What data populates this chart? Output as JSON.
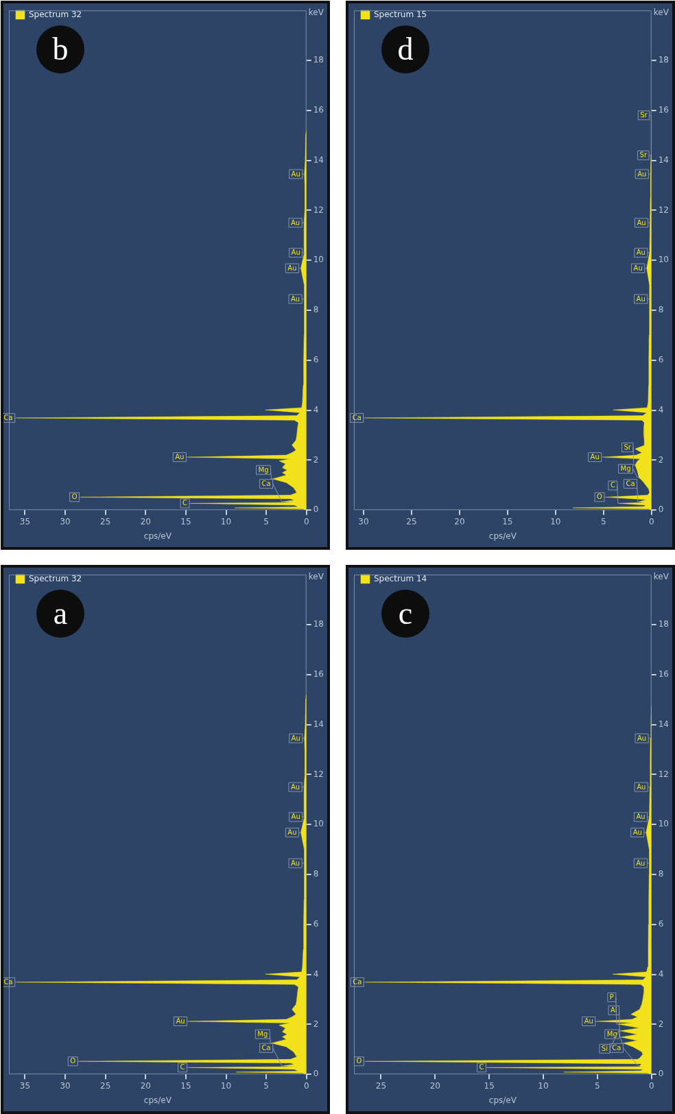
{
  "chart_data": [
    {
      "type": "area",
      "orientation": "horizontal",
      "title": "b",
      "xlabel": "cps/eV",
      "ylabel": "keV",
      "x": [
        0,
        0.05,
        0.09,
        0.13,
        0.2,
        0.27,
        0.31,
        0.34,
        0.4,
        0.45,
        0.52,
        0.6,
        0.7,
        0.9,
        1.1,
        1.25,
        1.4,
        1.5,
        1.6,
        1.7,
        1.85,
        1.97,
        2.05,
        2.12,
        2.2,
        2.3,
        2.4,
        2.6,
        2.8,
        3.0,
        3.3,
        3.5,
        3.6,
        3.69,
        3.78,
        3.9,
        4.01,
        4.1,
        4.3,
        5,
        6,
        7,
        8,
        8.45,
        9,
        9.68,
        10.3,
        11.5,
        12,
        13,
        13.45,
        14,
        15,
        15.2
      ],
      "series": [
        {
          "name": "Spectrum 32",
          "color": "#f2e21c",
          "values": [
            0,
            0.5,
            8.9,
            1,
            1.5,
            14.3,
            1.5,
            2.9,
            1.5,
            2,
            28,
            2,
            1.2,
            1.6,
            2.5,
            4.2,
            2.5,
            3,
            2.4,
            3,
            2.6,
            3.4,
            2,
            14.7,
            2.5,
            1.8,
            1.3,
            1.8,
            1.3,
            1.2,
            1.1,
            1,
            1.5,
            36,
            1.2,
            0.8,
            5.1,
            0.6,
            0.5,
            0.4,
            0.35,
            0.3,
            0.25,
            0.3,
            0.25,
            0.7,
            0.25,
            0.3,
            0.2,
            0.2,
            0.25,
            0.15,
            0.1,
            0
          ]
        }
      ],
      "xlim": [
        37,
        0
      ],
      "ylim": [
        0,
        20
      ],
      "xticks": [
        0,
        5,
        10,
        15,
        20,
        25,
        30,
        35
      ],
      "yticks": [
        0,
        2,
        4,
        6,
        8,
        10,
        12,
        14,
        16,
        18
      ],
      "legend": "top left",
      "marker": "none",
      "annotations": [
        {
          "text": "Ca",
          "x": 2.9,
          "y": 0.34
        },
        {
          "text": "C",
          "x": 14.3,
          "y": 0.27
        },
        {
          "text": "O",
          "x": 28,
          "y": 0.52
        },
        {
          "text": "Mg",
          "x": 4.2,
          "y": 1.25
        },
        {
          "text": "Au",
          "x": 14.7,
          "y": 2.12
        },
        {
          "text": "Ca",
          "x": 36,
          "y": 3.69
        },
        {
          "text": "Au",
          "x": 0.3,
          "y": 8.45
        },
        {
          "text": "Au",
          "x": 0.7,
          "y": 9.68
        },
        {
          "text": "Au",
          "x": 0.25,
          "y": 10.3
        },
        {
          "text": "Au",
          "x": 0.3,
          "y": 11.5
        },
        {
          "text": "Au",
          "x": 0.25,
          "y": 13.45
        }
      ]
    },
    {
      "type": "area",
      "orientation": "horizontal",
      "title": "d",
      "xlabel": "cps/eV",
      "ylabel": "keV",
      "x": [
        0,
        0.05,
        0.09,
        0.14,
        0.2,
        0.27,
        0.31,
        0.34,
        0.42,
        0.52,
        0.6,
        0.7,
        0.85,
        1.0,
        1.15,
        1.3,
        1.45,
        1.6,
        1.8,
        1.95,
        2.05,
        2.12,
        2.2,
        2.3,
        2.45,
        2.6,
        2.8,
        3.0,
        3.3,
        3.5,
        3.6,
        3.69,
        3.78,
        3.9,
        4.01,
        4.1,
        4.3,
        5,
        6,
        7,
        8,
        8.45,
        9,
        9.68,
        10.3,
        11.5,
        12.5,
        13.45,
        14.2,
        15.8
      ],
      "series": [
        {
          "name": "Spectrum 15",
          "color": "#f2e21c",
          "values": [
            0,
            0.3,
            8.2,
            0.8,
            0.6,
            3.35,
            0.7,
            1.3,
            0.5,
            4.7,
            0.4,
            0.2,
            0.3,
            0.6,
            0.9,
            1.3,
            1.4,
            1.5,
            1.7,
            1.5,
            1.2,
            5,
            1.6,
            1.0,
            1.7,
            0.7,
            0.75,
            0.8,
            0.8,
            0.75,
            1.0,
            29.8,
            0.9,
            0.5,
            4.0,
            0.45,
            0.35,
            0.3,
            0.28,
            0.25,
            0.22,
            0.21,
            0.2,
            0.5,
            0.2,
            0.15,
            0.12,
            0.1,
            0.05,
            0
          ]
        }
      ],
      "xlim": [
        31,
        0
      ],
      "ylim": [
        0,
        20
      ],
      "xticks": [
        0,
        5,
        10,
        15,
        20,
        25,
        30
      ],
      "yticks": [
        0,
        2,
        4,
        6,
        8,
        10,
        12,
        14,
        16,
        18
      ],
      "legend": "top left",
      "marker": "none",
      "annotations": [
        {
          "text": "Ca",
          "x": 1.3,
          "y": 0.34
        },
        {
          "text": "C",
          "x": 3.35,
          "y": 0.27
        },
        {
          "text": "O",
          "x": 4.7,
          "y": 0.52
        },
        {
          "text": "Mg",
          "x": 1.3,
          "y": 1.3
        },
        {
          "text": "Sr",
          "x": 1.7,
          "y": 1.8
        },
        {
          "text": "Au",
          "x": 5,
          "y": 2.12
        },
        {
          "text": "Ca",
          "x": 29.8,
          "y": 3.69
        },
        {
          "text": "Au",
          "x": 0.21,
          "y": 8.45
        },
        {
          "text": "Au",
          "x": 0.5,
          "y": 9.68
        },
        {
          "text": "Au",
          "x": 0.2,
          "y": 10.3
        },
        {
          "text": "Au",
          "x": 0.15,
          "y": 11.5
        },
        {
          "text": "Au",
          "x": 0.1,
          "y": 13.45
        },
        {
          "text": "Sr",
          "x": 0.05,
          "y": 14.2
        },
        {
          "text": "Sr",
          "x": 0,
          "y": 15.8
        }
      ]
    },
    {
      "type": "area",
      "orientation": "horizontal",
      "title": "a",
      "xlabel": "cps/eV",
      "ylabel": "keV",
      "x": [
        0,
        0.05,
        0.09,
        0.13,
        0.2,
        0.27,
        0.31,
        0.34,
        0.4,
        0.45,
        0.52,
        0.6,
        0.7,
        0.9,
        1.1,
        1.25,
        1.4,
        1.5,
        1.6,
        1.7,
        1.85,
        1.97,
        2.05,
        2.12,
        2.2,
        2.3,
        2.4,
        2.6,
        2.8,
        3.0,
        3.3,
        3.5,
        3.6,
        3.69,
        3.78,
        3.9,
        4.01,
        4.1,
        4.3,
        5,
        6,
        7,
        8,
        8.45,
        9,
        9.68,
        10.3,
        11.5,
        12,
        13,
        13.45,
        14,
        15,
        15.2
      ],
      "series": [
        {
          "name": "Spectrum 32",
          "color": "#f2e21c",
          "values": [
            0,
            0.5,
            8.75,
            1,
            1.5,
            14.6,
            1.5,
            2.9,
            1.5,
            2,
            28.2,
            2,
            1.2,
            1.6,
            2.5,
            4.3,
            2.5,
            3,
            2.4,
            3,
            2.6,
            3.4,
            2,
            14.6,
            2.5,
            1.8,
            1.3,
            1.8,
            1.3,
            1.2,
            1.1,
            1,
            1.5,
            36,
            1.2,
            0.8,
            5.1,
            0.6,
            0.5,
            0.4,
            0.35,
            0.3,
            0.25,
            0.3,
            0.25,
            0.7,
            0.25,
            0.3,
            0.2,
            0.2,
            0.25,
            0.15,
            0.1,
            0
          ]
        }
      ],
      "xlim": [
        37,
        0
      ],
      "ylim": [
        0,
        20
      ],
      "xticks": [
        0,
        5,
        10,
        15,
        20,
        25,
        30,
        35
      ],
      "yticks": [
        0,
        2,
        4,
        6,
        8,
        10,
        12,
        14,
        16,
        18
      ],
      "legend": "top left",
      "marker": "none",
      "annotations": [
        {
          "text": "Ca",
          "x": 2.9,
          "y": 0.34
        },
        {
          "text": "C",
          "x": 14.6,
          "y": 0.27
        },
        {
          "text": "O",
          "x": 28.2,
          "y": 0.52
        },
        {
          "text": "Mg",
          "x": 4.3,
          "y": 1.25
        },
        {
          "text": "Au",
          "x": 14.6,
          "y": 2.12
        },
        {
          "text": "Ca",
          "x": 36,
          "y": 3.69
        },
        {
          "text": "Au",
          "x": 0.3,
          "y": 8.45
        },
        {
          "text": "Au",
          "x": 0.7,
          "y": 9.68
        },
        {
          "text": "Au",
          "x": 0.25,
          "y": 10.3
        },
        {
          "text": "Au",
          "x": 0.3,
          "y": 11.5
        },
        {
          "text": "Au",
          "x": 0.25,
          "y": 13.45
        }
      ]
    },
    {
      "type": "area",
      "orientation": "horizontal",
      "title": "c",
      "xlabel": "cps/eV",
      "ylabel": "keV",
      "x": [
        0,
        0.05,
        0.09,
        0.14,
        0.2,
        0.27,
        0.31,
        0.34,
        0.42,
        0.52,
        0.6,
        0.65,
        0.8,
        0.9,
        1.1,
        1.25,
        1.35,
        1.49,
        1.6,
        1.74,
        1.85,
        2.01,
        2.06,
        2.12,
        2.2,
        2.3,
        2.4,
        2.6,
        2.8,
        3.0,
        3.3,
        3.5,
        3.6,
        3.69,
        3.78,
        3.9,
        4.01,
        4.1,
        4.3,
        5,
        6,
        7,
        8,
        8.45,
        9,
        9.68,
        10.3,
        11.5,
        12.5,
        13.45,
        14,
        14.8
      ],
      "series": [
        {
          "name": "Spectrum 14",
          "color": "#f2e21c",
          "values": [
            0,
            0.4,
            8.1,
            1.0,
            0.8,
            15.1,
            1.0,
            1.1,
            0.9,
            26.4,
            1.3,
            1.1,
            0.8,
            0.9,
            1.7,
            2.6,
            1.3,
            2.8,
            1.3,
            2.9,
            1.1,
            3.1,
            1.7,
            5.0,
            1.8,
            1.3,
            1.9,
            1.1,
            0.9,
            0.8,
            0.7,
            0.7,
            1.0,
            26.4,
            0.8,
            0.5,
            3.6,
            0.45,
            0.35,
            0.3,
            0.28,
            0.25,
            0.22,
            0.21,
            0.2,
            0.5,
            0.2,
            0.15,
            0.12,
            0.1,
            0.05,
            0
          ]
        }
      ],
      "xlim": [
        27.5,
        0
      ],
      "ylim": [
        0,
        20
      ],
      "xticks": [
        0,
        5,
        10,
        15,
        20,
        25
      ],
      "yticks": [
        0,
        2,
        4,
        6,
        8,
        10,
        12,
        14,
        16,
        18
      ],
      "legend": "top left",
      "marker": "none",
      "annotations": [
        {
          "text": "Ca",
          "x": 1.1,
          "y": 0.34
        },
        {
          "text": "C",
          "x": 15.1,
          "y": 0.27
        },
        {
          "text": "O",
          "x": 26.4,
          "y": 0.52
        },
        {
          "text": "Mg",
          "x": 2.6,
          "y": 1.25
        },
        {
          "text": "Al",
          "x": 2.8,
          "y": 1.49
        },
        {
          "text": "Si",
          "x": 2.9,
          "y": 1.74
        },
        {
          "text": "P",
          "x": 3.1,
          "y": 2.01
        },
        {
          "text": "Au",
          "x": 5.0,
          "y": 2.12
        },
        {
          "text": "Ca",
          "x": 26.4,
          "y": 3.69
        },
        {
          "text": "Au",
          "x": 0.21,
          "y": 8.45
        },
        {
          "text": "Au",
          "x": 0.5,
          "y": 9.68
        },
        {
          "text": "Au",
          "x": 0.2,
          "y": 10.3
        },
        {
          "text": "Au",
          "x": 0.15,
          "y": 11.5
        },
        {
          "text": "Au",
          "x": 0.1,
          "y": 13.45
        }
      ]
    }
  ]
}
